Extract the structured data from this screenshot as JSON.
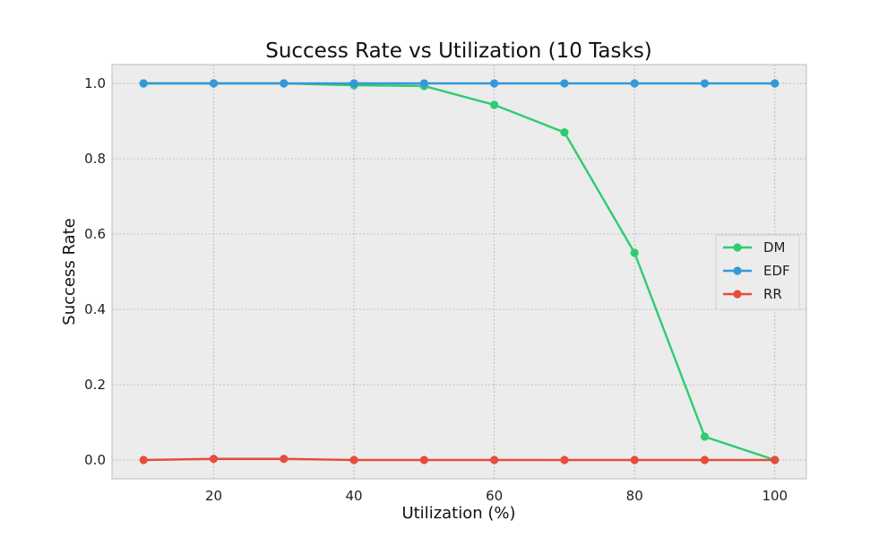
{
  "chart_data": {
    "type": "line",
    "title": "Success Rate vs Utilization (10 Tasks)",
    "xlabel": "Utilization (%)",
    "ylabel": "Success Rate",
    "x": [
      10,
      20,
      30,
      40,
      50,
      60,
      70,
      80,
      90,
      100
    ],
    "xlim": [
      5.5,
      104.5
    ],
    "ylim": [
      -0.05,
      1.05
    ],
    "xticks": [
      20,
      40,
      60,
      80,
      100
    ],
    "yticks": [
      0.0,
      0.2,
      0.4,
      0.6,
      0.8,
      1.0
    ],
    "xtick_labels": [
      "20",
      "40",
      "60",
      "80",
      "100"
    ],
    "ytick_labels": [
      "0.0",
      "0.2",
      "0.4",
      "0.6",
      "0.8",
      "1.0"
    ],
    "grid": true,
    "legend_position": "center-right",
    "series": [
      {
        "name": "DM",
        "color": "#2ecc71",
        "values": [
          1.0,
          1.0,
          1.0,
          0.995,
          0.993,
          0.943,
          0.87,
          0.55,
          0.062,
          0.0
        ]
      },
      {
        "name": "EDF",
        "color": "#3498db",
        "values": [
          1.0,
          1.0,
          1.0,
          1.0,
          1.0,
          1.0,
          1.0,
          1.0,
          1.0,
          1.0
        ]
      },
      {
        "name": "RR",
        "color": "#e74c3c",
        "values": [
          0.0,
          0.003,
          0.003,
          0.0,
          0.0,
          0.0,
          0.0,
          0.0,
          0.0,
          0.0
        ]
      }
    ]
  }
}
